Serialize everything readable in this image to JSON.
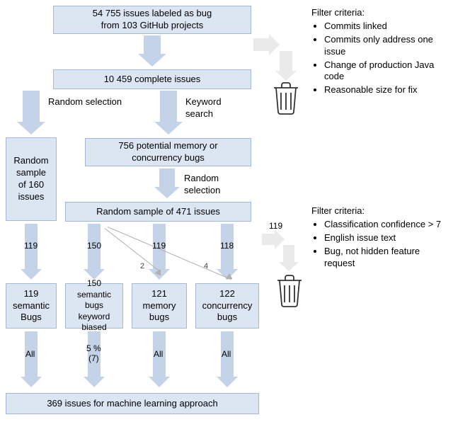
{
  "boxes": {
    "top": "54 755 issues labeled as bug\nfrom 103 GitHub projects",
    "complete": "10 459 complete issues",
    "random160": "Random\nsample\nof 160\nissues",
    "potential756": "756 potential memory or\nconcurrency bugs",
    "random471": "Random sample of 471 issues",
    "sem119": "119\nsemantic\nBugs",
    "sem150": "150 semantic\nbugs\nkeyword\nbiased",
    "mem121": "121\nmemory\nbugs",
    "con122": "122\nconcurrency\nbugs",
    "final": "369 issues for machine learning approach"
  },
  "labels": {
    "randomSel1": "Random selection",
    "keywordSearch": "Keyword\nsearch",
    "randomSel2": "Random\nselection",
    "filter1title": "Filter criteria:",
    "filter1": [
      "Commits linked",
      "Commits only address one issue",
      "Change of production Java code",
      "Reasonable size for fix"
    ],
    "filter2title": "Filter criteria:",
    "filter2": [
      "Classification confidence > 7",
      "English issue text",
      "Bug, not hidden feature request"
    ],
    "n119a": "119",
    "n150": "150",
    "n119b": "119",
    "n118": "118",
    "n119c": "119",
    "d2": "2",
    "d4": "4",
    "all1": "All",
    "pc5": "5 %\n(7)",
    "all3": "All",
    "all4": "All"
  },
  "style": {
    "boxBg": "#dce5f2",
    "boxBorder": "#a5b8d4",
    "arrowBlue": "#c5d3e8",
    "arrowGrey": "#eaeaea",
    "fontSize": 13
  }
}
